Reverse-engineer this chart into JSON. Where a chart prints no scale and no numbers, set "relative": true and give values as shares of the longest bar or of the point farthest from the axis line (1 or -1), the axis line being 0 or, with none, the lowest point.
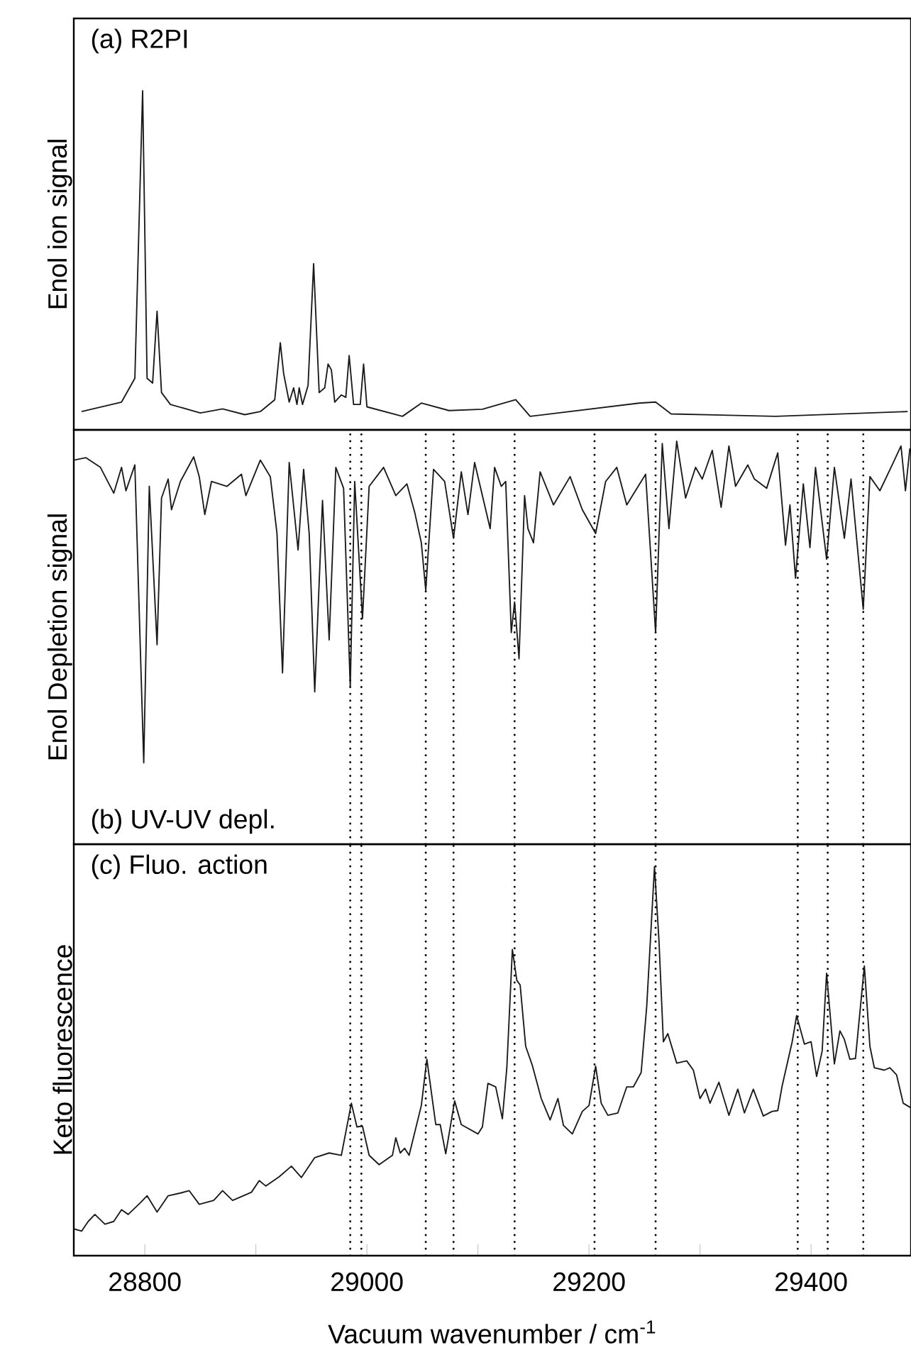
{
  "chart_data": [
    {
      "type": "line",
      "title": "(a) R2PI",
      "ylabel": "Enol ion signal",
      "relative": true,
      "tick_labels": false,
      "color": "#1a1a1a",
      "xlim": [
        28736,
        29490
      ],
      "x": [
        28743,
        28779,
        28791,
        28798,
        28802,
        28807,
        28811,
        28815,
        28823,
        28850,
        28870,
        28890,
        28904,
        28917,
        28922,
        28925,
        28930,
        28934,
        28937,
        28939,
        28942,
        28947,
        28952,
        28957,
        28962,
        28965,
        28968,
        28971,
        28977,
        28981,
        28984,
        28988,
        28994,
        28997,
        29000,
        29032,
        29049,
        29074,
        29104,
        29134,
        29147,
        29245,
        29260,
        29274,
        29368,
        29487
      ],
      "values": [
        0.054,
        0.082,
        0.152,
        1.0,
        0.152,
        0.138,
        0.35,
        0.11,
        0.075,
        0.05,
        0.062,
        0.045,
        0.054,
        0.089,
        0.257,
        0.166,
        0.082,
        0.124,
        0.075,
        0.124,
        0.075,
        0.131,
        0.49,
        0.11,
        0.124,
        0.194,
        0.177,
        0.082,
        0.103,
        0.096,
        0.219,
        0.075,
        0.075,
        0.194,
        0.068,
        0.04,
        0.079,
        0.057,
        0.061,
        0.089,
        0.04,
        0.079,
        0.082,
        0.047,
        0.04,
        0.054
      ]
    },
    {
      "type": "line",
      "title": "(b) UV-UV depl.",
      "ylabel": "Enol Depletion signal",
      "relative": true,
      "tick_labels": false,
      "color": "#1a1a1a",
      "xlim": [
        28736,
        29490
      ],
      "x": [
        28736,
        28747,
        28760,
        28772,
        28779,
        28783,
        28791,
        28799,
        28804,
        28811,
        28815,
        28821,
        28824,
        28832,
        28844,
        28849,
        28854,
        28860,
        28874,
        28887,
        28891,
        28904,
        28913,
        28919,
        28924,
        28930,
        28938,
        28943,
        28948,
        28953,
        28960,
        28966,
        28972,
        28979,
        28985,
        28989,
        28996,
        29002,
        29015,
        29026,
        29036,
        29043,
        29049,
        29053,
        29060,
        29070,
        29078,
        29085,
        29091,
        29097,
        29111,
        29115,
        29121,
        29125,
        29130,
        29133,
        29137,
        29142,
        29145,
        29150,
        29156,
        29168,
        29183,
        29194,
        29206,
        29215,
        29225,
        29234,
        29251,
        29260,
        29266,
        29272,
        29279,
        29287,
        29296,
        29302,
        29311,
        29319,
        29326,
        29332,
        29343,
        29349,
        29360,
        29370,
        29377,
        29381,
        29386,
        29393,
        29399,
        29404,
        29414,
        29421,
        29430,
        29436,
        29447,
        29453,
        29462,
        29472,
        29481,
        29485,
        29489
      ],
      "values": [
        0.953,
        0.959,
        0.935,
        0.871,
        0.935,
        0.877,
        0.941,
        0.202,
        0.888,
        0.495,
        0.859,
        0.906,
        0.83,
        0.9,
        0.961,
        0.912,
        0.818,
        0.9,
        0.888,
        0.918,
        0.865,
        0.953,
        0.912,
        0.771,
        0.425,
        0.947,
        0.73,
        0.93,
        0.771,
        0.378,
        0.853,
        0.507,
        0.935,
        0.883,
        0.39,
        0.9,
        0.56,
        0.888,
        0.935,
        0.865,
        0.894,
        0.824,
        0.748,
        0.63,
        0.93,
        0.9,
        0.759,
        0.924,
        0.818,
        0.947,
        0.783,
        0.935,
        0.888,
        0.9,
        0.525,
        0.601,
        0.46,
        0.865,
        0.783,
        0.748,
        0.924,
        0.842,
        0.912,
        0.83,
        0.771,
        0.9,
        0.935,
        0.842,
        0.918,
        0.525,
        0.994,
        0.783,
        1.0,
        0.859,
        0.935,
        0.906,
        0.977,
        0.836,
        0.988,
        0.888,
        0.941,
        0.906,
        0.883,
        0.971,
        0.742,
        0.842,
        0.66,
        0.894,
        0.736,
        0.935,
        0.707,
        0.935,
        0.759,
        0.906,
        0.583,
        0.912,
        0.877,
        0.935,
        0.988,
        0.877,
        0.982
      ],
      "ref_lines": [
        {
          "axis": "x",
          "value": 28985,
          "line_style": "dotted"
        },
        {
          "axis": "x",
          "value": 28995,
          "line_style": "dotted"
        },
        {
          "axis": "x",
          "value": 29053,
          "line_style": "dotted"
        },
        {
          "axis": "x",
          "value": 29078,
          "line_style": "dotted"
        },
        {
          "axis": "x",
          "value": 29133,
          "line_style": "dotted"
        },
        {
          "axis": "x",
          "value": 29205,
          "line_style": "dotted"
        },
        {
          "axis": "x",
          "value": 29260,
          "line_style": "dotted"
        },
        {
          "axis": "x",
          "value": 29388,
          "line_style": "dotted"
        },
        {
          "axis": "x",
          "value": 29415,
          "line_style": "dotted"
        },
        {
          "axis": "x",
          "value": 29447,
          "line_style": "dotted"
        }
      ]
    },
    {
      "type": "line",
      "title": "(c) Fluo. action",
      "ylabel": "Keto fluorescence",
      "xlabel": "Vacuum wavenumber / cm$^{-1}$",
      "relative": true,
      "tick_labels": "x",
      "color": "#1a1a1a",
      "xlim": [
        28736,
        29490
      ],
      "xticks": [
        28800,
        {
          "value": 28900,
          "label": null
        },
        29000,
        {
          "value": 29100,
          "label": null
        },
        29200,
        {
          "value": 29300,
          "label": null
        },
        29400
      ],
      "x": [
        28736,
        28743,
        28749,
        28755,
        28764,
        28772,
        28779,
        28785,
        28796,
        28802,
        28811,
        28821,
        28832,
        28840,
        28849,
        28862,
        28870,
        28879,
        28896,
        28903,
        28909,
        28921,
        28932,
        28941,
        28953,
        28966,
        28977,
        28986,
        28991,
        28996,
        29002,
        29011,
        29023,
        29026,
        29030,
        29034,
        29038,
        29049,
        29054,
        29062,
        29066,
        29071,
        29079,
        29085,
        29100,
        29104,
        29109,
        29116,
        29122,
        29126,
        29131,
        29135,
        29138,
        29143,
        29149,
        29157,
        29165,
        29172,
        29177,
        29185,
        29194,
        29200,
        29206,
        29211,
        29217,
        29226,
        29234,
        29240,
        29247,
        29252,
        29259,
        29263,
        29267,
        29271,
        29279,
        29288,
        29294,
        29300,
        29305,
        29309,
        29317,
        29326,
        29334,
        29340,
        29348,
        29357,
        29365,
        29370,
        29374,
        29383,
        29387,
        29394,
        29400,
        29405,
        29410,
        29414,
        29421,
        29426,
        29430,
        29435,
        29440,
        29448,
        29453,
        29457,
        29466,
        29471,
        29477,
        29483,
        29490
      ],
      "values": [
        0.069,
        0.063,
        0.088,
        0.106,
        0.081,
        0.088,
        0.118,
        0.106,
        0.136,
        0.154,
        0.112,
        0.154,
        0.161,
        0.167,
        0.132,
        0.142,
        0.167,
        0.142,
        0.163,
        0.193,
        0.179,
        0.203,
        0.23,
        0.201,
        0.252,
        0.264,
        0.258,
        0.392,
        0.331,
        0.333,
        0.258,
        0.234,
        0.258,
        0.303,
        0.264,
        0.276,
        0.258,
        0.386,
        0.505,
        0.337,
        0.337,
        0.262,
        0.398,
        0.337,
        0.313,
        0.331,
        0.443,
        0.434,
        0.352,
        0.483,
        0.787,
        0.708,
        0.696,
        0.538,
        0.489,
        0.404,
        0.349,
        0.404,
        0.335,
        0.313,
        0.371,
        0.386,
        0.487,
        0.392,
        0.361,
        0.367,
        0.434,
        0.434,
        0.471,
        0.641,
        1.0,
        0.811,
        0.55,
        0.571,
        0.495,
        0.501,
        0.477,
        0.404,
        0.428,
        0.392,
        0.446,
        0.361,
        0.428,
        0.367,
        0.428,
        0.359,
        0.371,
        0.373,
        0.437,
        0.55,
        0.617,
        0.544,
        0.55,
        0.461,
        0.526,
        0.726,
        0.493,
        0.578,
        0.556,
        0.505,
        0.507,
        0.745,
        0.538,
        0.483,
        0.477,
        0.483,
        0.465,
        0.392,
        0.38
      ],
      "ref_lines": [
        {
          "axis": "x",
          "value": 28985,
          "line_style": "dotted"
        },
        {
          "axis": "x",
          "value": 28995,
          "line_style": "dotted"
        },
        {
          "axis": "x",
          "value": 29053,
          "line_style": "dotted"
        },
        {
          "axis": "x",
          "value": 29078,
          "line_style": "dotted"
        },
        {
          "axis": "x",
          "value": 29133,
          "line_style": "dotted"
        },
        {
          "axis": "x",
          "value": 29205,
          "line_style": "dotted"
        },
        {
          "axis": "x",
          "value": 29260,
          "line_style": "dotted"
        },
        {
          "axis": "x",
          "value": 29388,
          "line_style": "dotted"
        },
        {
          "axis": "x",
          "value": 29415,
          "line_style": "dotted"
        },
        {
          "axis": "x",
          "value": 29447,
          "line_style": "dotted"
        }
      ]
    }
  ]
}
